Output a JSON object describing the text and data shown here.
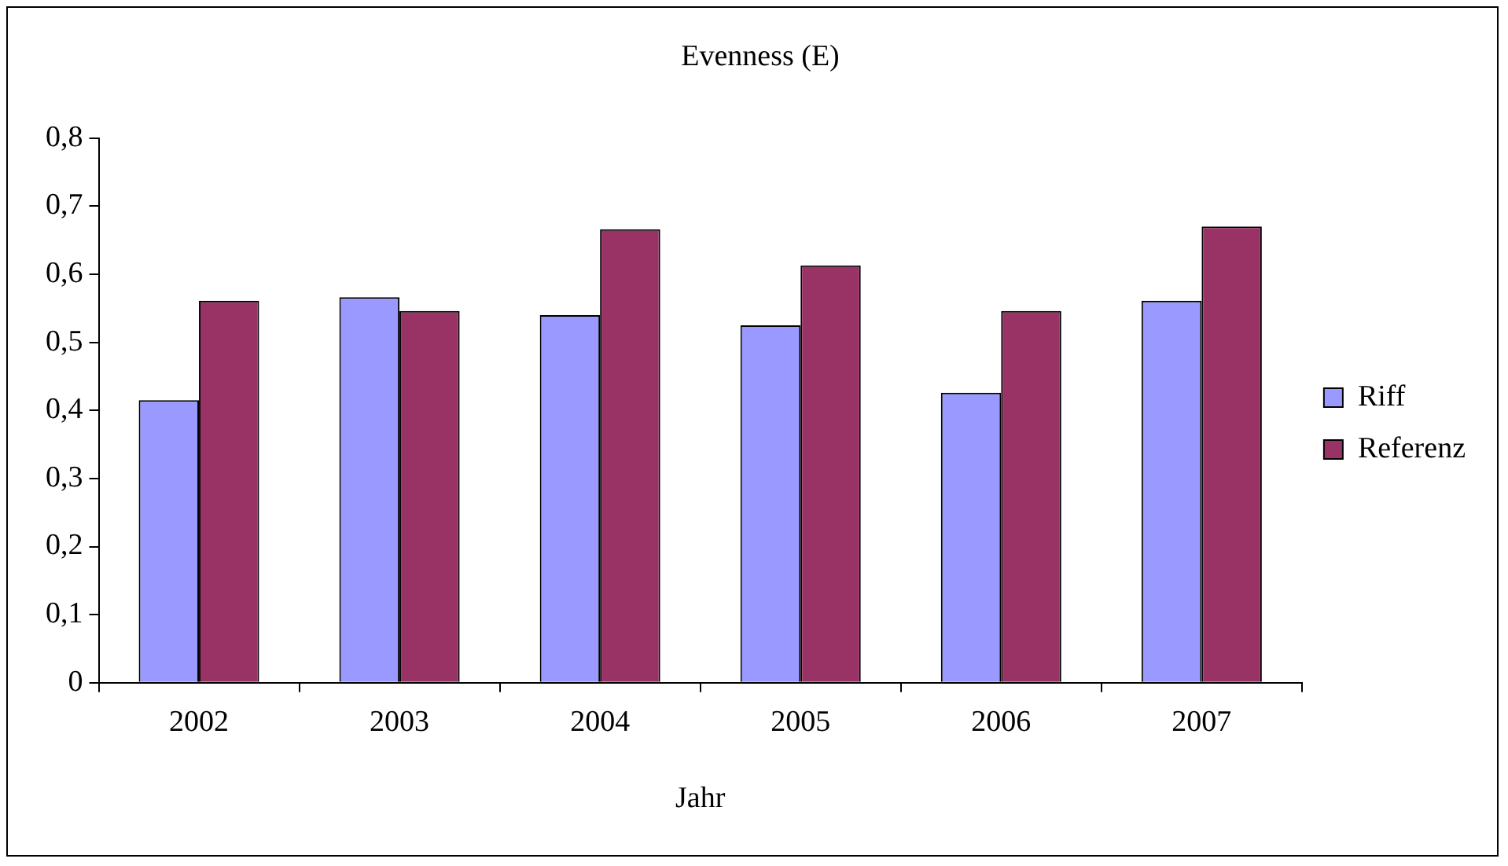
{
  "chart_data": {
    "type": "bar",
    "title": "Evenness (E)",
    "xlabel": "Jahr",
    "categories": [
      "2002",
      "2003",
      "2004",
      "2005",
      "2006",
      "2007"
    ],
    "series": [
      {
        "name": "Riff",
        "color": "#9999ff",
        "values": [
          0.415,
          0.566,
          0.54,
          0.525,
          0.426,
          0.561
        ]
      },
      {
        "name": "Referenz",
        "color": "#993366",
        "values": [
          0.561,
          0.546,
          0.666,
          0.613,
          0.546,
          0.67
        ]
      }
    ],
    "ylim": [
      0,
      0.8
    ],
    "yticks": [
      {
        "value": 0,
        "label": "0"
      },
      {
        "value": 0.1,
        "label": "0,1"
      },
      {
        "value": 0.2,
        "label": "0,2"
      },
      {
        "value": 0.3,
        "label": "0,3"
      },
      {
        "value": 0.4,
        "label": "0,4"
      },
      {
        "value": 0.5,
        "label": "0,5"
      },
      {
        "value": 0.6,
        "label": "0,6"
      },
      {
        "value": 0.7,
        "label": "0,7"
      },
      {
        "value": 0.8,
        "label": "0,8"
      }
    ],
    "grid": false,
    "legend": "right"
  }
}
